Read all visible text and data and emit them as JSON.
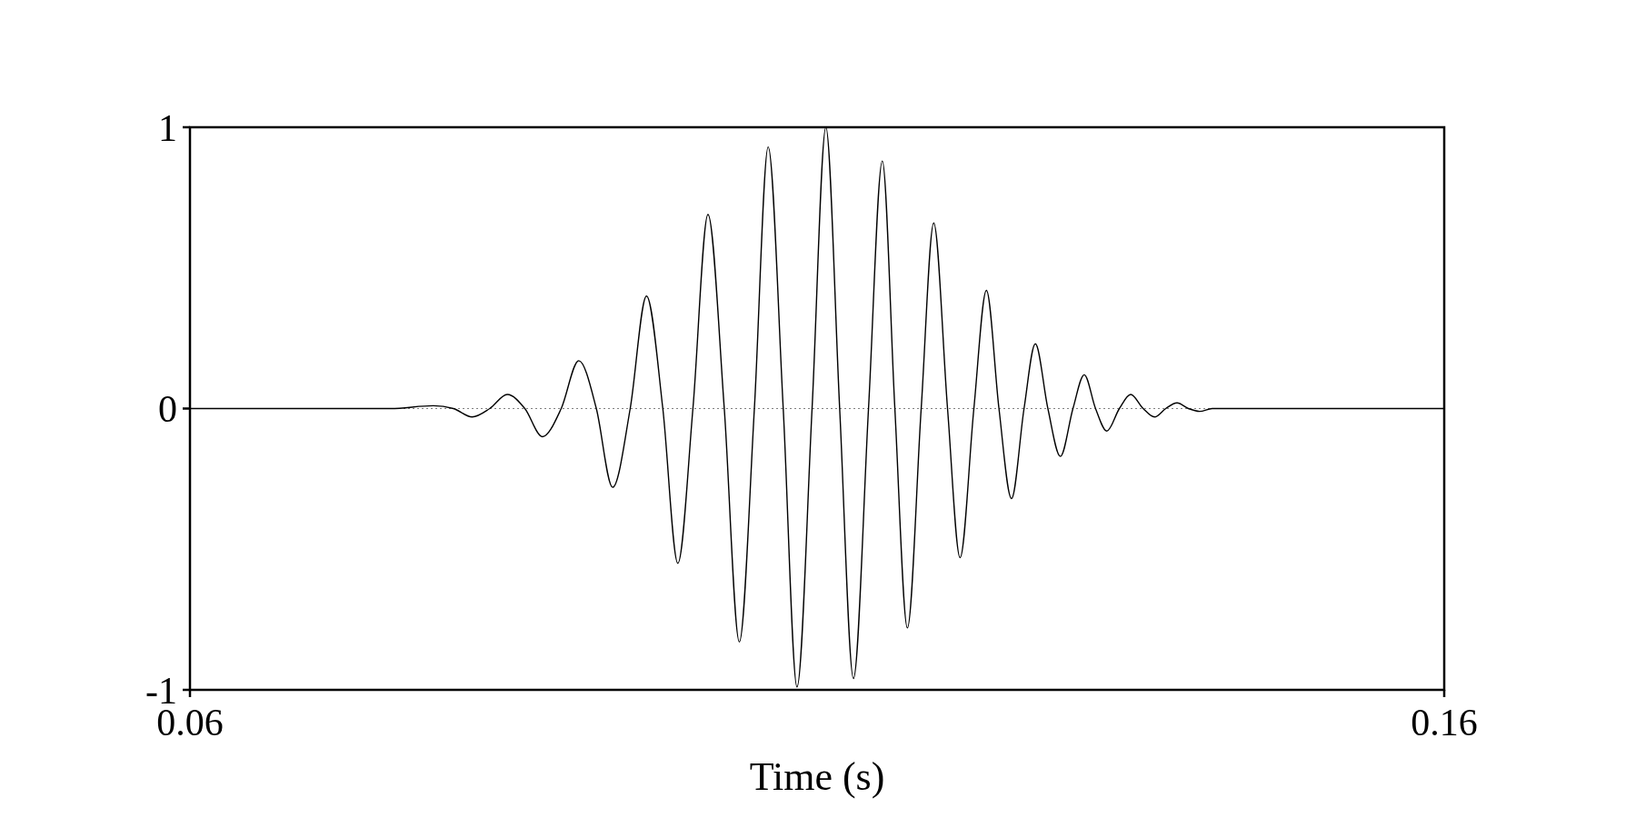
{
  "chart_data": {
    "type": "line",
    "xlabel": "Time (s)",
    "xlim": [
      0.06,
      0.16
    ],
    "xticks": [
      0.06,
      0.16
    ],
    "ylim": [
      -1,
      1
    ],
    "yticks": [
      -1,
      0,
      1
    ],
    "grid": false,
    "line_style": "solid",
    "ref_lines": [
      {
        "axis": "y",
        "value": 0,
        "color": "#808080",
        "line_style": "dotted"
      }
    ],
    "series": [
      {
        "color": "#000000",
        "x": [
          0.06,
          0.07,
          0.076,
          0.0794,
          0.081,
          0.0825,
          0.0839,
          0.0853,
          0.0867,
          0.0881,
          0.0896,
          0.091,
          0.0924,
          0.0937,
          0.0951,
          0.0964,
          0.0977,
          0.0989,
          0.1001,
          0.1013,
          0.1026,
          0.1038,
          0.105,
          0.1061,
          0.1073,
          0.1084,
          0.1096,
          0.1107,
          0.1118,
          0.1129,
          0.1141,
          0.1152,
          0.1162,
          0.1172,
          0.1183,
          0.1193,
          0.1204,
          0.1214,
          0.1225,
          0.1235,
          0.1245,
          0.1255,
          0.1265,
          0.1274,
          0.1284,
          0.1294,
          0.1304,
          0.1313,
          0.1322,
          0.1331,
          0.1341,
          0.135,
          0.136,
          0.1369,
          0.1378,
          0.1387,
          0.1396,
          0.1405,
          0.1415,
          0.15,
          0.16
        ],
        "values": [
          0,
          0,
          0,
          0.01,
          0,
          -0.03,
          0,
          0.05,
          0,
          -0.1,
          0,
          0.17,
          0,
          -0.28,
          0,
          0.4,
          0,
          -0.55,
          0,
          0.69,
          0,
          -0.83,
          0,
          0.93,
          0,
          -0.99,
          0,
          1.0,
          0,
          -0.96,
          0,
          0.88,
          0,
          -0.78,
          0,
          0.66,
          0,
          -0.53,
          0,
          0.42,
          0,
          -0.32,
          0,
          0.23,
          0,
          -0.17,
          0,
          0.12,
          0,
          -0.08,
          0,
          0.05,
          0,
          -0.03,
          0,
          0.02,
          0,
          -0.01,
          0,
          0,
          0
        ]
      }
    ]
  }
}
